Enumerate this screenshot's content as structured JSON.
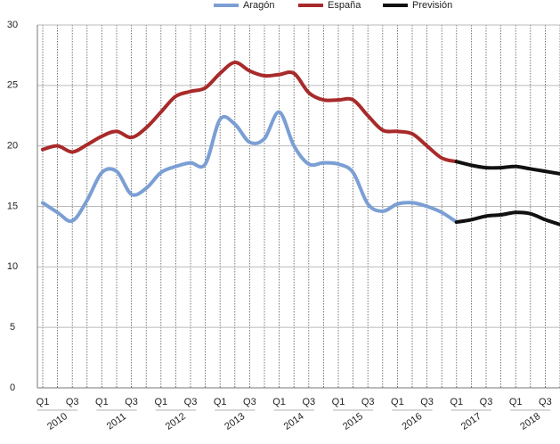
{
  "chart_data": {
    "type": "line",
    "categories": [
      "Q1",
      null,
      "Q3",
      null,
      "Q1",
      null,
      "Q3",
      null,
      "Q1",
      null,
      "Q3",
      null,
      "Q1",
      null,
      "Q3",
      null,
      "Q1",
      null,
      "Q3",
      null,
      "Q1",
      null,
      "Q3",
      null,
      "Q1",
      null,
      "Q3",
      null,
      "Q1",
      null,
      "Q3",
      null,
      "Q1",
      null,
      "Q3",
      null
    ],
    "years": [
      "2010",
      "2011",
      "2012",
      "2013",
      "2014",
      "2015",
      "2016",
      "2017",
      "2018"
    ],
    "ylim": [
      0,
      30
    ],
    "yticks": [
      0,
      5,
      10,
      15,
      20,
      25,
      30
    ],
    "grid": true,
    "series": [
      {
        "name": "Aragón",
        "color": "#7b9fd4",
        "values": [
          15.3,
          14.5,
          13.8,
          15.5,
          17.8,
          17.9,
          16.0,
          16.5,
          17.8,
          18.3,
          18.6,
          18.5,
          22.2,
          21.8,
          20.3,
          20.6,
          22.8,
          20.0,
          18.5,
          18.6,
          18.5,
          17.8,
          15.2,
          14.6,
          15.2,
          15.3,
          15.0,
          14.5,
          13.7,
          null,
          null,
          null,
          null,
          null,
          null,
          null
        ]
      },
      {
        "name": "España",
        "color": "#a82a2a",
        "values": [
          19.7,
          20.0,
          19.5,
          20.1,
          20.8,
          21.2,
          20.7,
          21.5,
          22.8,
          24.1,
          24.5,
          24.8,
          26.0,
          26.9,
          26.2,
          25.8,
          25.9,
          26.0,
          24.4,
          23.8,
          23.8,
          23.8,
          22.5,
          21.3,
          21.2,
          21.0,
          20.0,
          19.0,
          18.7,
          null,
          null,
          null,
          null,
          null,
          null,
          null
        ]
      },
      {
        "name": "Previsión",
        "color": "#111111",
        "values": [
          null,
          null,
          null,
          null,
          null,
          null,
          null,
          null,
          null,
          null,
          null,
          null,
          null,
          null,
          null,
          null,
          null,
          null,
          null,
          null,
          null,
          null,
          null,
          null,
          null,
          null,
          null,
          null,
          13.7,
          13.9,
          14.2,
          14.3,
          14.5,
          14.4,
          13.9,
          13.5
        ]
      },
      {
        "name": "Previsión",
        "color": "#111111",
        "values": [
          null,
          null,
          null,
          null,
          null,
          null,
          null,
          null,
          null,
          null,
          null,
          null,
          null,
          null,
          null,
          null,
          null,
          null,
          null,
          null,
          null,
          null,
          null,
          null,
          null,
          null,
          null,
          null,
          18.7,
          18.4,
          18.2,
          18.2,
          18.3,
          18.1,
          17.9,
          17.7
        ]
      }
    ]
  }
}
